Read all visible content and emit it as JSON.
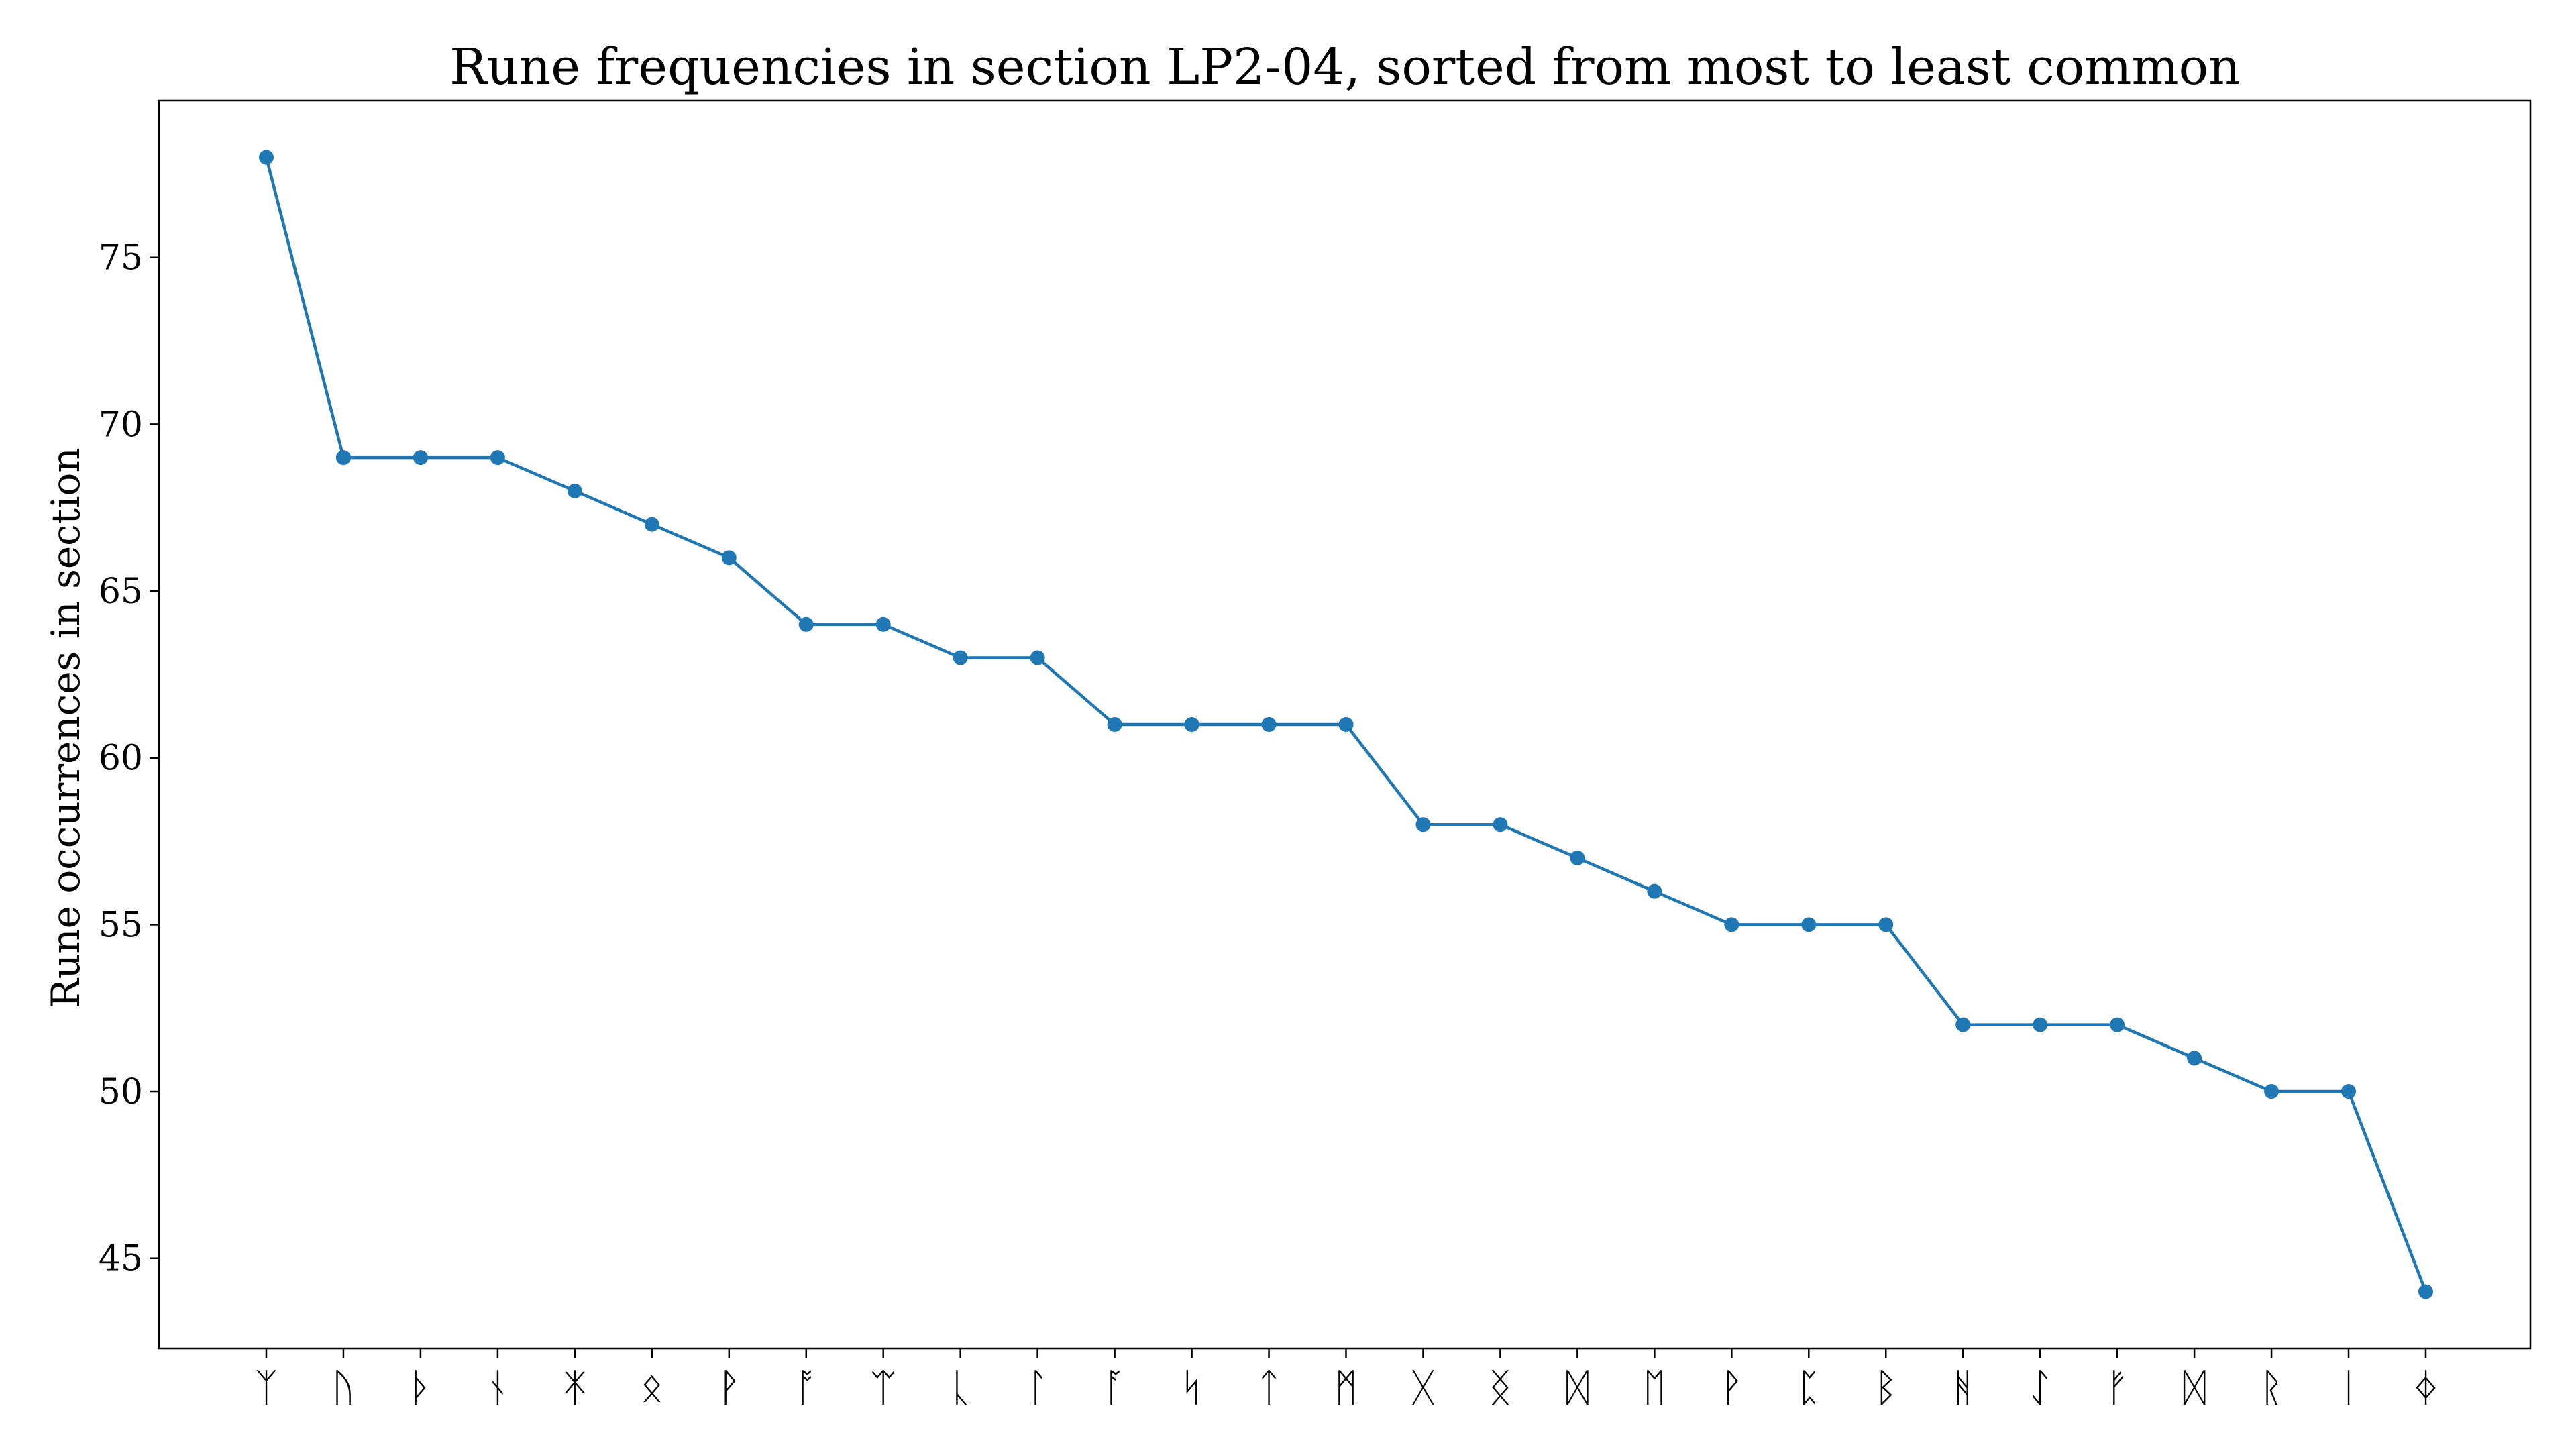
{
  "chart_data": {
    "type": "line",
    "title": "Rune frequencies in section LP2-04, sorted from most to least common",
    "xlabel": "",
    "ylabel": "Rune occurrences in section",
    "categories": [
      "ᛉ",
      "ᚢ",
      "ᚦ",
      "ᚾ",
      "ᛡ",
      "ᛟ",
      "ᚹ",
      "ᚩ",
      "ᛠ",
      "ᚳ",
      "ᛚ",
      "ᚪ",
      "ᛋ",
      "ᛏ",
      "ᛗ",
      "ᚷ",
      "ᛝ",
      "ᛞ",
      "ᛖ",
      "ᚹ",
      "ᛈ",
      "ᛒ",
      "ᚻ",
      "ᛇ",
      "ᚠ",
      "ᛞ",
      "ᚱ",
      "ᛁ",
      "ᛄ"
    ],
    "series": [
      {
        "values": [
          78,
          69,
          69,
          69,
          68,
          67,
          66,
          64,
          64,
          63,
          63,
          61,
          61,
          61,
          61,
          58,
          58,
          57,
          56,
          55,
          55,
          55,
          52,
          52,
          52,
          51,
          50,
          50,
          44
        ]
      }
    ],
    "ylim": [
      42.3,
      79.7
    ],
    "yticks": [
      45,
      50,
      55,
      60,
      65,
      70,
      75
    ],
    "grid": false,
    "legend": "none",
    "color": "#1f77b4"
  }
}
